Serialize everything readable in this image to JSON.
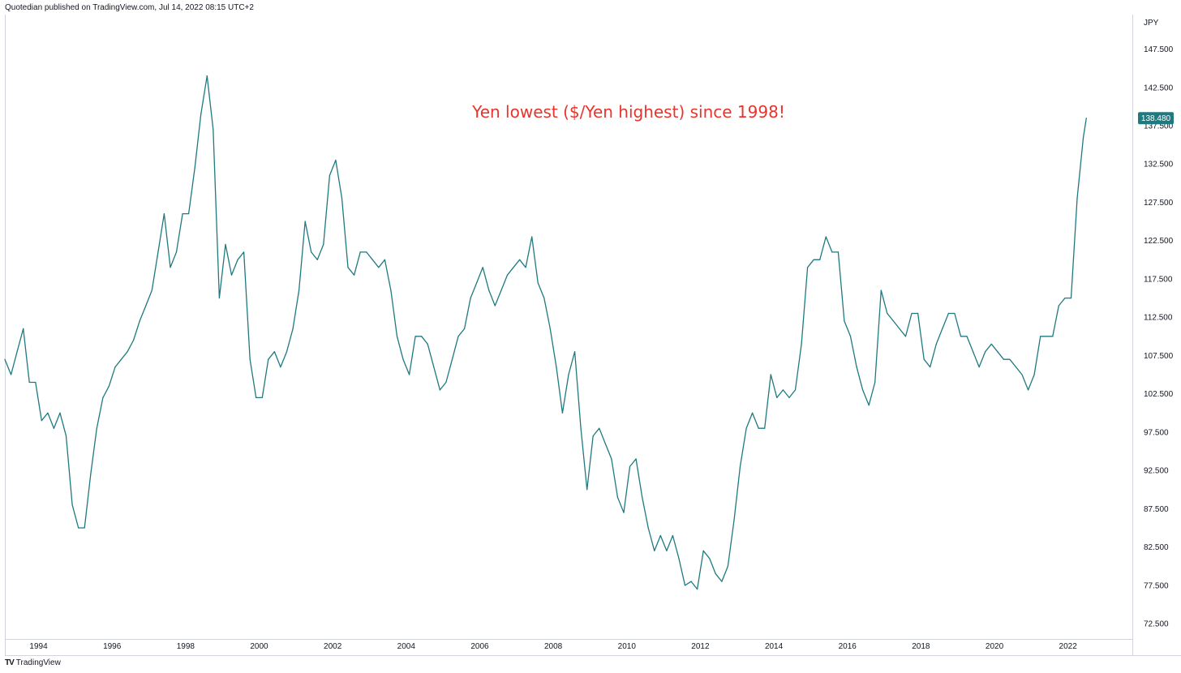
{
  "header": {
    "text": "Quotedian published on TradingView.com, Jul 14, 2022 08:15 UTC+2"
  },
  "footer": {
    "logo": "TV",
    "brand": "TradingView"
  },
  "colors": {
    "line": "#1f7a80",
    "annotation": "#e8342c",
    "axis_text": "#131722",
    "border": "#d1d4dc"
  },
  "chart_data": {
    "type": "line",
    "currency_label": "JPY",
    "annotation": "Yen lowest ($/Yen highest) since 1998!",
    "last_value_label": "138.480",
    "x_ticks": [
      "1994",
      "1996",
      "1998",
      "2000",
      "2002",
      "2004",
      "2006",
      "2008",
      "2010",
      "2012",
      "2014",
      "2016",
      "2018",
      "2020",
      "2022"
    ],
    "y_ticks": [
      "72.500",
      "77.500",
      "82.500",
      "87.500",
      "92.500",
      "97.500",
      "102.500",
      "107.500",
      "112.500",
      "117.500",
      "122.500",
      "127.500",
      "132.500",
      "137.500",
      "142.500",
      "147.500"
    ],
    "xlim": [
      "1993-02",
      "2023-10"
    ],
    "ylim": [
      70.5,
      152
    ],
    "series": [
      {
        "x": [
          "1993-02",
          "1993-04",
          "1993-06",
          "1993-08",
          "1993-10",
          "1993-12",
          "1994-02",
          "1994-04",
          "1994-06",
          "1994-08",
          "1994-10",
          "1994-12",
          "1995-02",
          "1995-04",
          "1995-06",
          "1995-08",
          "1995-10",
          "1995-12",
          "1996-02",
          "1996-04",
          "1996-06",
          "1996-08",
          "1996-10",
          "1996-12",
          "1997-02",
          "1997-04",
          "1997-06",
          "1997-08",
          "1997-10",
          "1997-12",
          "1998-02",
          "1998-04",
          "1998-06",
          "1998-08",
          "1998-10",
          "1998-12",
          "1999-02",
          "1999-04",
          "1999-06",
          "1999-08",
          "1999-10",
          "1999-12",
          "2000-02",
          "2000-04",
          "2000-06",
          "2000-08",
          "2000-10",
          "2000-12",
          "2001-02",
          "2001-04",
          "2001-06",
          "2001-08",
          "2001-10",
          "2001-12",
          "2002-02",
          "2002-04",
          "2002-06",
          "2002-08",
          "2002-10",
          "2002-12",
          "2003-02",
          "2003-04",
          "2003-06",
          "2003-08",
          "2003-10",
          "2003-12",
          "2004-02",
          "2004-04",
          "2004-06",
          "2004-08",
          "2004-10",
          "2004-12",
          "2005-02",
          "2005-04",
          "2005-06",
          "2005-08",
          "2005-10",
          "2005-12",
          "2006-02",
          "2006-04",
          "2006-06",
          "2006-08",
          "2006-10",
          "2006-12",
          "2007-02",
          "2007-04",
          "2007-06",
          "2007-08",
          "2007-10",
          "2007-12",
          "2008-02",
          "2008-04",
          "2008-06",
          "2008-08",
          "2008-10",
          "2008-12",
          "2009-02",
          "2009-04",
          "2009-06",
          "2009-08",
          "2009-10",
          "2009-12",
          "2010-02",
          "2010-04",
          "2010-06",
          "2010-08",
          "2010-10",
          "2010-12",
          "2011-02",
          "2011-04",
          "2011-06",
          "2011-08",
          "2011-10",
          "2011-12",
          "2012-02",
          "2012-04",
          "2012-06",
          "2012-08",
          "2012-10",
          "2012-12",
          "2013-02",
          "2013-04",
          "2013-06",
          "2013-08",
          "2013-10",
          "2013-12",
          "2014-02",
          "2014-04",
          "2014-06",
          "2014-08",
          "2014-10",
          "2014-12",
          "2015-02",
          "2015-04",
          "2015-06",
          "2015-08",
          "2015-10",
          "2015-12",
          "2016-02",
          "2016-04",
          "2016-06",
          "2016-08",
          "2016-10",
          "2016-12",
          "2017-02",
          "2017-04",
          "2017-06",
          "2017-08",
          "2017-10",
          "2017-12",
          "2018-02",
          "2018-04",
          "2018-06",
          "2018-08",
          "2018-10",
          "2018-12",
          "2019-02",
          "2019-04",
          "2019-06",
          "2019-08",
          "2019-10",
          "2019-12",
          "2020-02",
          "2020-04",
          "2020-06",
          "2020-08",
          "2020-10",
          "2020-12",
          "2021-02",
          "2021-04",
          "2021-06",
          "2021-08",
          "2021-10",
          "2021-12",
          "2022-02",
          "2022-04",
          "2022-06",
          "2022-07"
        ],
        "values": [
          107,
          105,
          108,
          111,
          104,
          104,
          99,
          100,
          98,
          100,
          97,
          88,
          85,
          85,
          92,
          98,
          102,
          103.5,
          106,
          107,
          108,
          109.5,
          112,
          114,
          116,
          121,
          126,
          119,
          121,
          126,
          126,
          132,
          139,
          144,
          137,
          115,
          122,
          118,
          120,
          121,
          107,
          102,
          102,
          107,
          108,
          106,
          108,
          111,
          116,
          125,
          121,
          120,
          122,
          131,
          133,
          128,
          119,
          118,
          121,
          121,
          120,
          119,
          120,
          116,
          110,
          107,
          105,
          110,
          110,
          109,
          106,
          103,
          104,
          107,
          110,
          111,
          115,
          117,
          119,
          116,
          114,
          116,
          118,
          119,
          120,
          119,
          123,
          117,
          115,
          111,
          106,
          100,
          105,
          108,
          98,
          90,
          97,
          98,
          96,
          94,
          89,
          87,
          93,
          94,
          89,
          85,
          82,
          84,
          82,
          84,
          81,
          77.5,
          78,
          77,
          82,
          81,
          79,
          78,
          80,
          86,
          93,
          98,
          100,
          98,
          98,
          105,
          102,
          103,
          102,
          103,
          109,
          119,
          120,
          120,
          123,
          121,
          121,
          112,
          110,
          106,
          103,
          101,
          104,
          116,
          113,
          112,
          111,
          110,
          113,
          113,
          107,
          106,
          109,
          111,
          113,
          113,
          110,
          110,
          108,
          106,
          108,
          109,
          108,
          107,
          107,
          106,
          105,
          103,
          105,
          110,
          110,
          110,
          114,
          115,
          115,
          128,
          136,
          138.48
        ]
      }
    ]
  }
}
